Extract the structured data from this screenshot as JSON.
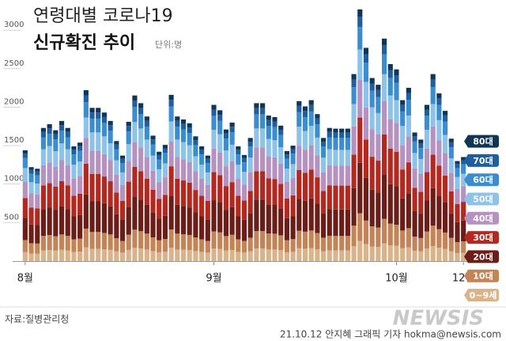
{
  "chart_data": {
    "type": "stacked_bar",
    "title": "연령대별 코로나19",
    "subtitle": "신규확진 추이",
    "unit": "단위:명",
    "source": "자료:질병관리청",
    "credit": "21.10.12 안지혜 그래픽 기자 hokma@newsis.com",
    "watermark": "NEWSIS",
    "categories": [
      "8월",
      null,
      null,
      null,
      null,
      null,
      null,
      null,
      null,
      null,
      null,
      null,
      null,
      null,
      null,
      null,
      null,
      null,
      null,
      null,
      null,
      null,
      null,
      null,
      null,
      null,
      null,
      null,
      null,
      null,
      null,
      "9월",
      null,
      null,
      null,
      null,
      null,
      null,
      null,
      null,
      null,
      null,
      null,
      null,
      null,
      null,
      null,
      null,
      null,
      null,
      null,
      null,
      null,
      null,
      null,
      null,
      null,
      null,
      null,
      null,
      null,
      "10월",
      null,
      null,
      null,
      null,
      null,
      null,
      null,
      null,
      null,
      null,
      "12일"
    ],
    "ylim": [
      0,
      3300
    ],
    "yticks": [
      500,
      1000,
      1500,
      2000,
      2500,
      3000
    ],
    "series": [
      {
        "name": "0~9세",
        "color": "#d9b48a",
        "values": [
          115,
          98,
          96,
          138,
          142,
          136,
          146,
          138,
          119,
          123,
          178,
          159,
          159,
          154,
          146,
          125,
          110,
          145,
          172,
          164,
          150,
          130,
          114,
          121,
          173,
          150,
          147,
          143,
          130,
          119,
          110,
          162,
          157,
          137,
          144,
          119,
          110,
          128,
          164,
          164,
          151,
          150,
          141,
          114,
          120,
          166,
          161,
          167,
          153,
          128,
          138,
          138,
          138,
          138,
          194,
          262,
          222,
          190,
          183,
          231,
          205,
          199,
          167,
          180,
          134,
          126,
          162,
          194,
          174,
          156,
          127,
          104,
          108
        ]
      },
      {
        "name": "10대",
        "color": "#c38557",
        "values": [
          158,
          134,
          132,
          190,
          196,
          187,
          200,
          190,
          164,
          169,
          244,
          219,
          219,
          212,
          200,
          172,
          151,
          199,
          237,
          226,
          207,
          179,
          156,
          166,
          238,
          207,
          202,
          197,
          178,
          164,
          151,
          223,
          216,
          188,
          198,
          164,
          152,
          176,
          226,
          226,
          208,
          206,
          194,
          157,
          165,
          229,
          221,
          230,
          210,
          176,
          190,
          189,
          189,
          189,
          267,
          360,
          305,
          262,
          252,
          318,
          282,
          274,
          230,
          248,
          184,
          174,
          223,
          267,
          240,
          215,
          175,
          143,
          149
        ]
      },
      {
        "name": "20대",
        "color": "#6b1d18",
        "values": [
          288,
          244,
          240,
          346,
          356,
          340,
          364,
          346,
          298,
          308,
          444,
          398,
          398,
          386,
          364,
          312,
          274,
          362,
          430,
          410,
          376,
          326,
          284,
          302,
          432,
          376,
          368,
          358,
          324,
          298,
          274,
          406,
          392,
          342,
          360,
          298,
          276,
          320,
          410,
          410,
          378,
          374,
          352,
          286,
          300,
          416,
          402,
          418,
          382,
          320,
          346,
          344,
          344,
          344,
          486,
          654,
          554,
          476,
          458,
          578,
          512,
          498,
          418,
          450,
          334,
          316,
          406,
          486,
          436,
          390,
          318,
          260,
          270
        ]
      },
      {
        "name": "30대",
        "color": "#b3291f",
        "values": [
          259,
          220,
          216,
          311,
          320,
          306,
          328,
          311,
          268,
          277,
          400,
          358,
          358,
          347,
          328,
          281,
          247,
          326,
          387,
          369,
          338,
          293,
          256,
          272,
          389,
          338,
          331,
          322,
          292,
          268,
          247,
          365,
          353,
          308,
          324,
          268,
          248,
          288,
          369,
          369,
          340,
          337,
          317,
          257,
          270,
          374,
          362,
          376,
          344,
          288,
          311,
          310,
          310,
          310,
          437,
          589,
          499,
          428,
          412,
          520,
          461,
          448,
          376,
          405,
          301,
          284,
          365,
          437,
          392,
          351,
          286,
          234,
          243
        ]
      },
      {
        "name": "40대",
        "color": "#b692c0",
        "values": [
          216,
          183,
          180,
          260,
          267,
          255,
          273,
          260,
          224,
          231,
          333,
          299,
          299,
          290,
          273,
          234,
          206,
          272,
          323,
          308,
          282,
          245,
          213,
          227,
          324,
          282,
          276,
          269,
          243,
          224,
          206,
          305,
          294,
          257,
          270,
          224,
          207,
          240,
          308,
          308,
          284,
          281,
          264,
          215,
          225,
          312,
          302,
          314,
          287,
          240,
          260,
          258,
          258,
          258,
          365,
          491,
          416,
          357,
          344,
          434,
          384,
          374,
          314,
          338,
          251,
          237,
          305,
          365,
          327,
          293,
          239,
          195,
          203
        ]
      },
      {
        "name": "50대",
        "color": "#8dc3e8",
        "values": [
          173,
          146,
          144,
          208,
          214,
          204,
          218,
          208,
          179,
          185,
          266,
          239,
          239,
          232,
          218,
          187,
          164,
          217,
          258,
          246,
          226,
          196,
          170,
          181,
          259,
          226,
          221,
          215,
          194,
          179,
          164,
          244,
          235,
          205,
          216,
          179,
          166,
          192,
          246,
          246,
          227,
          224,
          211,
          172,
          180,
          250,
          241,
          251,
          229,
          192,
          208,
          206,
          206,
          206,
          292,
          392,
          332,
          286,
          275,
          347,
          307,
          299,
          251,
          270,
          200,
          190,
          244,
          292,
          262,
          234,
          191,
          156,
          162
        ]
      },
      {
        "name": "60대",
        "color": "#3a8ed0",
        "values": [
          130,
          110,
          108,
          156,
          160,
          153,
          164,
          156,
          134,
          139,
          200,
          179,
          179,
          174,
          164,
          140,
          123,
          163,
          194,
          185,
          169,
          147,
          128,
          136,
          194,
          169,
          166,
          161,
          146,
          134,
          123,
          183,
          176,
          154,
          162,
          134,
          124,
          144,
          185,
          185,
          170,
          168,
          158,
          129,
          135,
          187,
          181,
          188,
          172,
          144,
          156,
          155,
          155,
          155,
          219,
          294,
          249,
          214,
          206,
          260,
          230,
          224,
          188,
          203,
          150,
          142,
          183,
          219,
          196,
          176,
          143,
          117,
          122
        ]
      },
      {
        "name": "70대",
        "color": "#1f5f9f",
        "values": [
          58,
          49,
          48,
          69,
          71,
          68,
          73,
          69,
          60,
          62,
          89,
          80,
          80,
          77,
          73,
          62,
          55,
          72,
          86,
          82,
          75,
          65,
          57,
          60,
          86,
          75,
          74,
          72,
          65,
          60,
          55,
          81,
          78,
          68,
          72,
          60,
          55,
          64,
          82,
          82,
          76,
          75,
          70,
          57,
          60,
          83,
          80,
          84,
          76,
          64,
          69,
          69,
          69,
          69,
          97,
          131,
          111,
          95,
          92,
          116,
          102,
          100,
          84,
          90,
          67,
          63,
          81,
          97,
          87,
          78,
          64,
          52,
          54
        ]
      },
      {
        "name": "80대",
        "color": "#103656",
        "values": [
          43,
          37,
          36,
          52,
          53,
          51,
          55,
          52,
          45,
          46,
          67,
          60,
          60,
          58,
          55,
          47,
          41,
          54,
          65,
          62,
          56,
          49,
          43,
          45,
          65,
          56,
          55,
          54,
          49,
          45,
          41,
          61,
          59,
          51,
          54,
          45,
          41,
          48,
          62,
          62,
          57,
          56,
          53,
          43,
          45,
          62,
          60,
          63,
          57,
          48,
          52,
          52,
          52,
          52,
          73,
          98,
          83,
          71,
          69,
          87,
          77,
          75,
          63,
          68,
          50,
          47,
          61,
          73,
          65,
          59,
          48,
          39,
          41
        ]
      }
    ]
  }
}
